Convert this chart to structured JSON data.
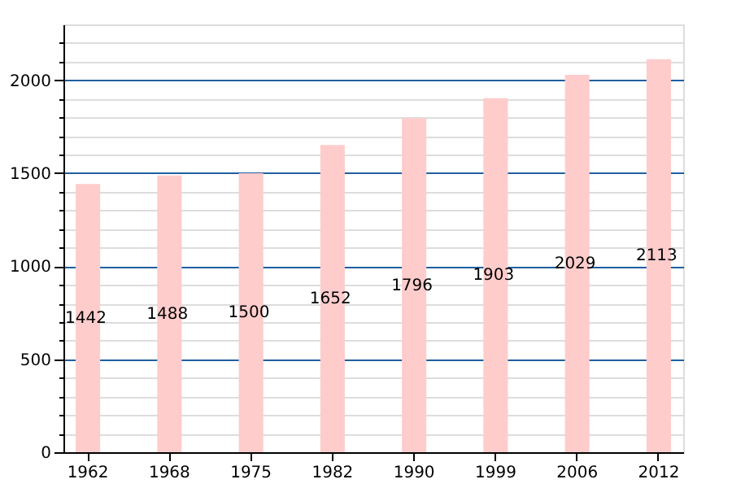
{
  "chart_data": {
    "type": "bar",
    "categories": [
      "1962",
      "1968",
      "1975",
      "1982",
      "1990",
      "1999",
      "2006",
      "2012"
    ],
    "values": [
      1442,
      1488,
      1500,
      1652,
      1796,
      1903,
      2029,
      2113
    ],
    "color": "#ffcccc",
    "data_labels": true,
    "ylim": [
      0,
      2300
    ],
    "yticks": [
      0,
      {
        "value": 100,
        "label": null
      },
      {
        "value": 200,
        "label": null
      },
      {
        "value": 300,
        "label": null
      },
      {
        "value": 400,
        "label": null
      },
      500,
      {
        "value": 600,
        "label": null
      },
      {
        "value": 700,
        "label": null
      },
      {
        "value": 800,
        "label": null
      },
      {
        "value": 900,
        "label": null
      },
      1000,
      {
        "value": 1100,
        "label": null
      },
      {
        "value": 1200,
        "label": null
      },
      {
        "value": 1300,
        "label": null
      },
      {
        "value": 1400,
        "label": null
      },
      1500,
      {
        "value": 1600,
        "label": null
      },
      {
        "value": 1700,
        "label": null
      },
      {
        "value": 1800,
        "label": null
      },
      {
        "value": 1900,
        "label": null
      },
      2000,
      {
        "value": 2100,
        "label": null
      },
      {
        "value": 2200,
        "label": null
      }
    ],
    "grid": "y"
  }
}
